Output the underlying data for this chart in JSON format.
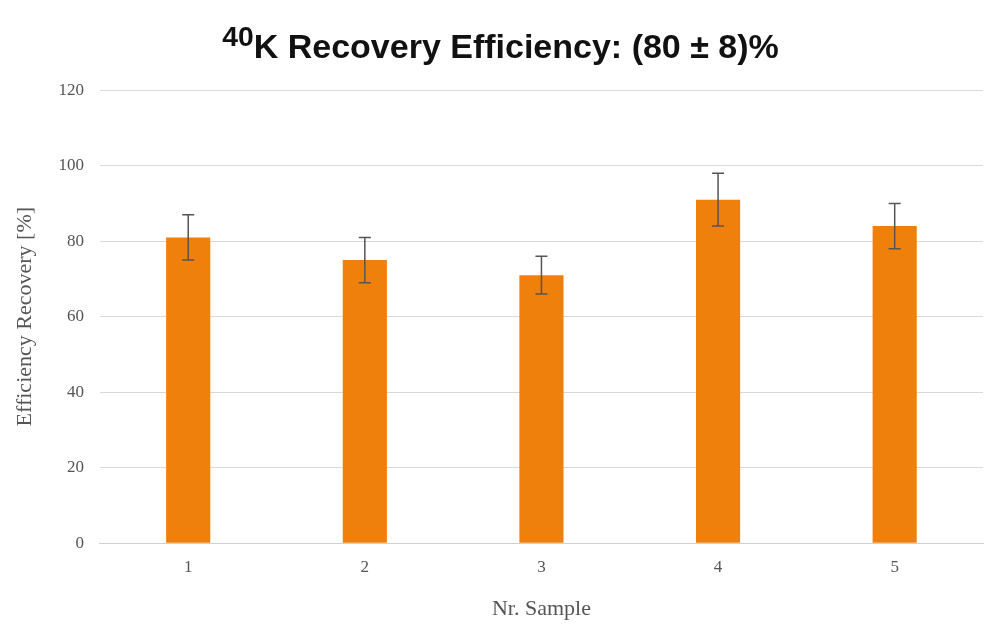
{
  "chart_data": {
    "type": "bar",
    "title": "$^{40}$K Recovery Efficiency: (80 ± 8)%",
    "xlabel": "Nr. Sample",
    "ylabel": "Efficiency Recovery [%]",
    "categories": [
      "1",
      "2",
      "3",
      "4",
      "5"
    ],
    "values": [
      81,
      75,
      71,
      91,
      84
    ],
    "errors": [
      6,
      6,
      5,
      7,
      6
    ],
    "color": "#f0800c",
    "ylim": [
      0,
      120
    ],
    "yticks": [
      0,
      20,
      40,
      60,
      80,
      100,
      120
    ],
    "grid": "y",
    "legend": false
  }
}
